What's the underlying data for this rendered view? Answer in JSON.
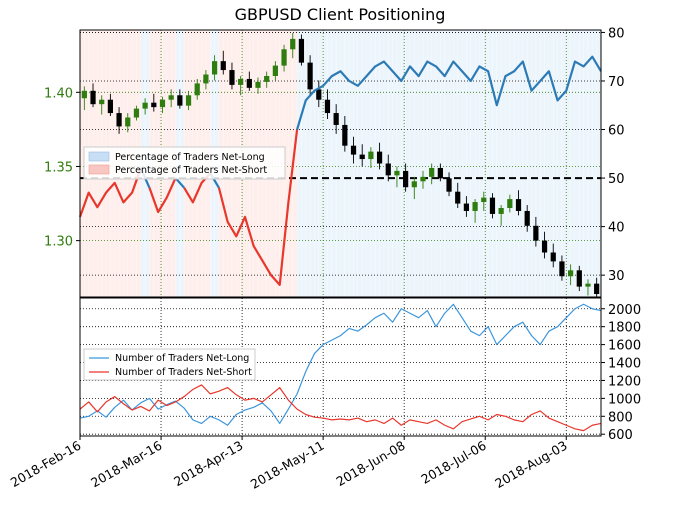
{
  "chart_data": [
    {
      "type": "candlestick+line",
      "title": "GBPUSD Client Positioning",
      "x_ticks": [
        "2018-Feb-16",
        "2018-Mar-16",
        "2018-Apr-13",
        "2018-May-11",
        "2018-Jun-08",
        "2018-Jul-06",
        "2018-Aug-03"
      ],
      "left_axis": {
        "ylim": [
          1.262,
          1.442
        ],
        "ticks": [
          "1.30",
          "1.35",
          "1.40"
        ],
        "tick_values": [
          1.3,
          1.35,
          1.4
        ],
        "color": "#2e7d0e"
      },
      "right_axis": {
        "ylim": [
          25.5,
          80.5
        ],
        "ticks": [
          "30",
          "40",
          "50",
          "60",
          "70",
          "80"
        ],
        "tick_values": [
          30,
          40,
          50,
          60,
          70,
          80
        ]
      },
      "reference_line": 50,
      "legend": {
        "position": "upper-left",
        "items": [
          "Percentage of Traders Net-Long",
          "Percentage of Traders Net-Short"
        ]
      },
      "series": [
        {
          "name": "Percentage of Traders Net-Long",
          "axis": "right",
          "x": [
            0,
            3,
            6,
            9,
            12,
            15,
            18,
            21,
            24,
            27,
            30,
            33,
            36,
            39,
            42,
            45,
            48,
            51,
            54,
            57,
            60,
            63,
            66,
            69,
            72,
            75,
            78,
            81,
            84,
            87,
            90,
            93,
            96,
            99,
            102,
            105,
            108,
            111,
            114,
            117,
            120,
            123,
            126,
            129,
            132,
            135,
            138,
            141,
            144,
            147,
            150,
            153,
            156,
            159,
            162,
            165,
            168,
            171,
            174,
            177,
            180
          ],
          "values": [
            42,
            47,
            44,
            47,
            49,
            45,
            47,
            52,
            48,
            43,
            46,
            50,
            48,
            45,
            49,
            51,
            48,
            41,
            38,
            42,
            36,
            33,
            30,
            28,
            45,
            60,
            66,
            68,
            69,
            71,
            72,
            70,
            69,
            71,
            73,
            74,
            72,
            70,
            73,
            71,
            74,
            73,
            71,
            74,
            72,
            70,
            73,
            72,
            65,
            71,
            72,
            74,
            68,
            70,
            72,
            66,
            68,
            74,
            73,
            75,
            72
          ],
          "color": "#2c7bb6"
        }
      ],
      "candles": [
        [
          1.396,
          1.404,
          1.388,
          1.401
        ],
        [
          1.401,
          1.406,
          1.39,
          1.392
        ],
        [
          1.392,
          1.398,
          1.385,
          1.395
        ],
        [
          1.395,
          1.399,
          1.384,
          1.386
        ],
        [
          1.386,
          1.39,
          1.372,
          1.377
        ],
        [
          1.377,
          1.386,
          1.373,
          1.383
        ],
        [
          1.383,
          1.391,
          1.381,
          1.389
        ],
        [
          1.389,
          1.396,
          1.385,
          1.393
        ],
        [
          1.393,
          1.399,
          1.387,
          1.39
        ],
        [
          1.39,
          1.397,
          1.386,
          1.395
        ],
        [
          1.395,
          1.402,
          1.39,
          1.398
        ],
        [
          1.398,
          1.402,
          1.389,
          1.391
        ],
        [
          1.391,
          1.401,
          1.388,
          1.398
        ],
        [
          1.398,
          1.409,
          1.395,
          1.406
        ],
        [
          1.406,
          1.415,
          1.402,
          1.412
        ],
        [
          1.412,
          1.425,
          1.408,
          1.421
        ],
        [
          1.421,
          1.428,
          1.412,
          1.415
        ],
        [
          1.415,
          1.42,
          1.402,
          1.405
        ],
        [
          1.405,
          1.411,
          1.398,
          1.409
        ],
        [
          1.409,
          1.414,
          1.401,
          1.403
        ],
        [
          1.403,
          1.41,
          1.399,
          1.407
        ],
        [
          1.407,
          1.414,
          1.403,
          1.411
        ],
        [
          1.411,
          1.421,
          1.408,
          1.418
        ],
        [
          1.418,
          1.432,
          1.414,
          1.429
        ],
        [
          1.429,
          1.44,
          1.423,
          1.436
        ],
        [
          1.436,
          1.439,
          1.418,
          1.42
        ],
        [
          1.42,
          1.425,
          1.398,
          1.402
        ],
        [
          1.402,
          1.408,
          1.39,
          1.395
        ],
        [
          1.395,
          1.402,
          1.382,
          1.386
        ],
        [
          1.386,
          1.392,
          1.372,
          1.378
        ],
        [
          1.378,
          1.384,
          1.36,
          1.364
        ],
        [
          1.364,
          1.37,
          1.352,
          1.358
        ],
        [
          1.358,
          1.365,
          1.35,
          1.355
        ],
        [
          1.355,
          1.363,
          1.349,
          1.36
        ],
        [
          1.36,
          1.366,
          1.348,
          1.352
        ],
        [
          1.352,
          1.358,
          1.34,
          1.344
        ],
        [
          1.344,
          1.35,
          1.336,
          1.347
        ],
        [
          1.347,
          1.352,
          1.333,
          1.336
        ],
        [
          1.336,
          1.343,
          1.328,
          1.34
        ],
        [
          1.34,
          1.347,
          1.335,
          1.343
        ],
        [
          1.343,
          1.352,
          1.338,
          1.349
        ],
        [
          1.349,
          1.352,
          1.34,
          1.342
        ],
        [
          1.342,
          1.346,
          1.33,
          1.333
        ],
        [
          1.333,
          1.339,
          1.322,
          1.325
        ],
        [
          1.325,
          1.33,
          1.316,
          1.32
        ],
        [
          1.32,
          1.328,
          1.312,
          1.326
        ],
        [
          1.326,
          1.333,
          1.32,
          1.329
        ],
        [
          1.329,
          1.332,
          1.315,
          1.318
        ],
        [
          1.318,
          1.324,
          1.31,
          1.322
        ],
        [
          1.322,
          1.331,
          1.319,
          1.328
        ],
        [
          1.328,
          1.334,
          1.317,
          1.32
        ],
        [
          1.32,
          1.324,
          1.306,
          1.31
        ],
        [
          1.31,
          1.316,
          1.296,
          1.3
        ],
        [
          1.3,
          1.306,
          1.288,
          1.292
        ],
        [
          1.292,
          1.298,
          1.282,
          1.286
        ],
        [
          1.286,
          1.29,
          1.273,
          1.276
        ],
        [
          1.276,
          1.284,
          1.27,
          1.28
        ],
        [
          1.28,
          1.283,
          1.266,
          1.269
        ],
        [
          1.269,
          1.274,
          1.263,
          1.271
        ],
        [
          1.271,
          1.275,
          1.262,
          1.264
        ]
      ],
      "candle_colors": {
        "up": "#2e7d0e",
        "down": "#000000"
      },
      "shading": {
        "net_long_color": "#dcecfa",
        "net_short_color": "#fde0dd"
      }
    },
    {
      "type": "line",
      "x_ticks": [
        "2018-Feb-16",
        "2018-Mar-16",
        "2018-Apr-13",
        "2018-May-11",
        "2018-Jun-08",
        "2018-Jul-06",
        "2018-Aug-03"
      ],
      "right_axis": {
        "ylim": [
          580,
          2120
        ],
        "ticks": [
          "600",
          "800",
          "1000",
          "1200",
          "1400",
          "1600",
          "1800",
          "2000"
        ],
        "tick_values": [
          600,
          800,
          1000,
          1200,
          1400,
          1600,
          1800,
          2000
        ]
      },
      "legend": {
        "position": "left",
        "items": [
          "Number of Traders Net-Long",
          "Number of Traders Net-Short"
        ]
      },
      "series": [
        {
          "name": "Number of Traders Net-Long",
          "color": "#3c96dc",
          "values": [
            780,
            800,
            860,
            790,
            900,
            980,
            870,
            950,
            1000,
            880,
            930,
            970,
            890,
            760,
            720,
            800,
            760,
            700,
            820,
            870,
            900,
            950,
            860,
            720,
            880,
            1050,
            1300,
            1500,
            1600,
            1650,
            1700,
            1780,
            1750,
            1820,
            1900,
            1950,
            1850,
            2000,
            1950,
            1900,
            1980,
            1800,
            1950,
            2050,
            1900,
            1750,
            1700,
            1800,
            1600,
            1700,
            1800,
            1850,
            1700,
            1600,
            1750,
            1800,
            1900,
            2000,
            2050,
            2000,
            1980
          ]
        },
        {
          "name": "Number of Traders Net-Short",
          "color": "#e8372c",
          "values": [
            880,
            960,
            850,
            960,
            1020,
            940,
            870,
            910,
            860,
            980,
            920,
            960,
            1020,
            1100,
            1150,
            1050,
            1080,
            1120,
            1040,
            980,
            1000,
            960,
            1040,
            1120,
            980,
            880,
            820,
            790,
            780,
            760,
            770,
            760,
            780,
            740,
            760,
            720,
            780,
            700,
            760,
            740,
            720,
            760,
            700,
            660,
            740,
            770,
            800,
            760,
            820,
            800,
            760,
            740,
            820,
            860,
            780,
            740,
            700,
            660,
            640,
            700,
            720
          ]
        }
      ]
    }
  ]
}
